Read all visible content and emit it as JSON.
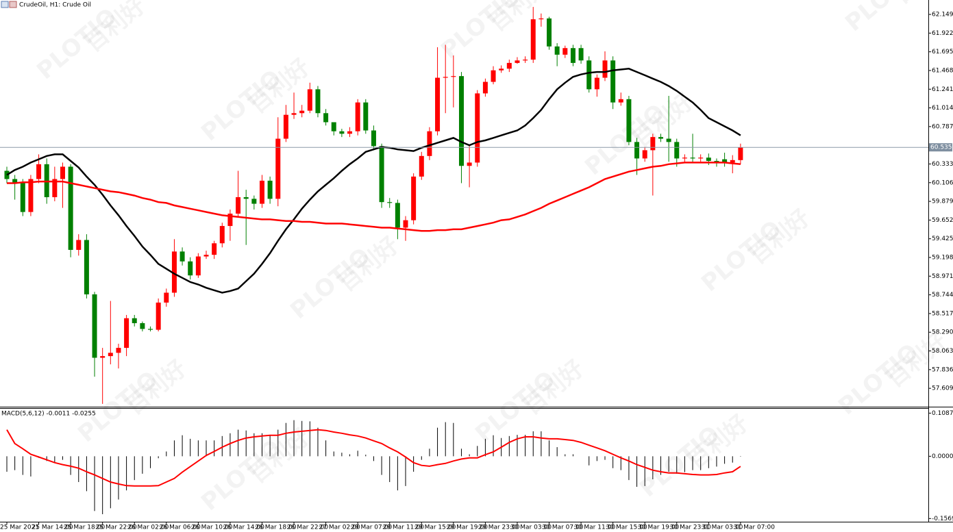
{
  "watermark": [
    "PLOTIO",
    "百利好"
  ],
  "chart_data": [
    {
      "type": "candlestick",
      "title": "CrudeOil, H1:  Crude Oil",
      "up_color": "#ff0000",
      "down_color": "#008000",
      "categories": [
        "25 Mar 2021",
        null,
        null,
        null,
        "25 Mar 14:00",
        null,
        null,
        null,
        "25 Mar 18:00",
        null,
        null,
        null,
        "25 Mar 22:00",
        null,
        null,
        null,
        "26 Mar 02:00",
        null,
        null,
        null,
        "26 Mar 06:00",
        null,
        null,
        null,
        "26 Mar 10:00",
        null,
        null,
        null,
        "26 Mar 14:00",
        null,
        null,
        null,
        "26 Mar 18:00",
        null,
        null,
        null,
        "26 Mar 22:00",
        null,
        null,
        null,
        "27 Mar 02:00",
        null,
        null,
        null,
        "29 Mar 07:00",
        null,
        null,
        null,
        "29 Mar 11:00",
        null,
        null,
        null,
        "29 Mar 15:00",
        null,
        null,
        null,
        "29 Mar 19:00",
        null,
        null,
        null,
        "29 Mar 23:00",
        null,
        null,
        null,
        "30 Mar 03:00",
        null,
        null,
        null,
        "30 Mar 07:00",
        null,
        null,
        null,
        "30 Mar 11:00",
        null,
        null,
        null,
        "30 Mar 15:00",
        null,
        null,
        null,
        "30 Mar 19:00",
        null,
        null,
        null,
        "30 Mar 23:00",
        null,
        null,
        null,
        "31 Mar 03:00",
        null,
        null,
        null,
        "31 Mar 07:00"
      ],
      "open": [
        60.25,
        60.15,
        60.1,
        59.75,
        60.15,
        60.33,
        59.93,
        60.15,
        60.3,
        59.29,
        59.41,
        58.75,
        57.98,
        58.0,
        58.04,
        58.1,
        58.46,
        58.4,
        58.33,
        58.32,
        58.65,
        58.77,
        59.27,
        59.15,
        58.98,
        59.21,
        59.23,
        59.37,
        59.58,
        59.73,
        59.93,
        59.91,
        59.85,
        60.13,
        59.91,
        60.64,
        60.93,
        60.95,
        60.98,
        61.24,
        60.95,
        60.84,
        60.73,
        60.7,
        60.73,
        61.08,
        60.74,
        60.55,
        59.87,
        59.86,
        59.56,
        59.65,
        60.18,
        60.43,
        60.73,
        61.38,
        61.39,
        61.4,
        60.31,
        60.35,
        61.19,
        61.33,
        61.47,
        61.49,
        61.56,
        61.59,
        61.6,
        62.09,
        62.1,
        61.76,
        61.66,
        61.74,
        61.74,
        61.59,
        61.24,
        61.38,
        61.59,
        61.08,
        61.12,
        60.6,
        60.4,
        60.5,
        60.66,
        60.64,
        60.6,
        60.4,
        60.41,
        60.4,
        60.41,
        60.37,
        60.39,
        60.35,
        60.38
      ],
      "high": [
        60.3,
        60.2,
        60.15,
        60.2,
        60.45,
        60.4,
        60.3,
        60.35,
        60.33,
        59.48,
        59.48,
        58.78,
        58.1,
        58.67,
        58.15,
        58.5,
        58.5,
        58.42,
        58.36,
        58.7,
        58.82,
        59.42,
        59.32,
        59.2,
        59.25,
        59.28,
        59.4,
        59.62,
        59.78,
        60.25,
        60.02,
        59.95,
        60.2,
        60.18,
        60.9,
        61.05,
        61.2,
        61.05,
        61.32,
        61.28,
        61.0,
        60.8,
        60.76,
        60.78,
        61.12,
        61.12,
        60.8,
        60.58,
        59.92,
        59.9,
        59.7,
        60.22,
        60.48,
        60.78,
        61.75,
        61.78,
        61.65,
        61.45,
        60.55,
        61.23,
        61.37,
        61.52,
        61.53,
        61.6,
        61.63,
        61.64,
        62.24,
        62.16,
        62.12,
        61.8,
        61.77,
        61.78,
        61.78,
        61.64,
        61.42,
        61.7,
        61.64,
        61.2,
        61.16,
        60.65,
        60.54,
        60.7,
        60.7,
        61.16,
        60.64,
        60.45,
        60.7,
        60.45,
        60.46,
        60.4,
        60.47,
        60.44,
        60.58
      ],
      "low": [
        60.1,
        59.9,
        59.7,
        59.7,
        60.1,
        59.85,
        59.88,
        59.8,
        59.2,
        59.22,
        58.7,
        57.75,
        57.42,
        57.9,
        57.85,
        58.0,
        58.36,
        58.3,
        58.3,
        58.3,
        58.6,
        58.72,
        59.1,
        58.93,
        58.95,
        59.18,
        59.18,
        59.32,
        59.4,
        59.68,
        59.35,
        59.78,
        59.8,
        59.85,
        59.82,
        60.6,
        60.88,
        60.9,
        60.95,
        60.9,
        60.8,
        60.68,
        60.66,
        60.66,
        60.68,
        60.7,
        60.5,
        59.8,
        59.8,
        59.42,
        59.4,
        59.6,
        60.14,
        60.38,
        60.68,
        60.95,
        61.02,
        60.1,
        60.05,
        60.3,
        61.15,
        61.3,
        61.44,
        61.45,
        61.55,
        61.56,
        61.56,
        62.0,
        61.72,
        61.52,
        61.62,
        61.52,
        61.55,
        61.2,
        61.15,
        61.34,
        61.0,
        61.04,
        60.56,
        60.2,
        60.36,
        59.95,
        60.6,
        60.36,
        60.3,
        60.36,
        60.36,
        60.36,
        60.32,
        60.3,
        60.3,
        60.22,
        60.33
      ],
      "close": [
        60.15,
        60.1,
        59.75,
        60.15,
        60.33,
        59.93,
        60.15,
        60.3,
        59.29,
        59.41,
        58.75,
        57.98,
        58.0,
        58.04,
        58.1,
        58.46,
        58.4,
        58.33,
        58.32,
        58.65,
        58.77,
        59.27,
        59.15,
        58.98,
        59.21,
        59.23,
        59.37,
        59.58,
        59.73,
        59.93,
        59.91,
        59.85,
        60.13,
        59.91,
        60.64,
        60.93,
        60.95,
        60.98,
        61.24,
        60.95,
        60.84,
        60.73,
        60.7,
        60.73,
        61.08,
        60.74,
        60.55,
        59.87,
        59.86,
        59.56,
        59.65,
        60.18,
        60.43,
        60.73,
        61.38,
        61.39,
        61.4,
        60.31,
        60.35,
        61.19,
        61.33,
        61.47,
        61.49,
        61.56,
        61.59,
        61.6,
        62.09,
        62.1,
        61.76,
        61.66,
        61.74,
        61.56,
        61.59,
        61.24,
        61.38,
        61.59,
        61.08,
        61.12,
        60.6,
        60.4,
        60.5,
        60.66,
        60.64,
        60.6,
        60.4,
        60.41,
        60.4,
        60.41,
        60.37,
        60.35,
        60.35,
        60.38,
        60.535
      ],
      "series": [
        {
          "color": "#000000",
          "values": [
            60.2,
            60.26,
            60.3,
            60.35,
            60.39,
            60.43,
            60.45,
            60.45,
            60.37,
            60.29,
            60.18,
            60.08,
            59.96,
            59.83,
            59.71,
            59.58,
            59.46,
            59.33,
            59.23,
            59.12,
            59.06,
            59.0,
            58.95,
            58.9,
            58.87,
            58.83,
            58.8,
            58.77,
            58.79,
            58.82,
            58.91,
            59.0,
            59.12,
            59.25,
            59.4,
            59.54,
            59.66,
            59.79,
            59.9,
            60.0,
            60.08,
            60.16,
            60.25,
            60.33,
            60.4,
            60.48,
            60.51,
            60.54,
            60.53,
            60.51,
            60.5,
            60.49,
            60.53,
            60.56,
            60.59,
            60.62,
            60.65,
            60.6,
            60.56,
            60.6,
            60.62,
            60.65,
            60.68,
            60.71,
            60.74,
            60.8,
            60.89,
            60.99,
            61.12,
            61.24,
            61.32,
            61.39,
            61.42,
            61.44,
            61.45,
            61.45,
            61.47,
            61.48,
            61.49,
            61.45,
            61.41,
            61.37,
            61.33,
            61.28,
            61.22,
            61.15,
            61.08,
            60.99,
            60.89,
            60.84,
            60.79,
            60.74,
            60.68
          ]
        },
        {
          "color": "#ff0000",
          "values": [
            60.1,
            60.1,
            60.11,
            60.11,
            60.12,
            60.12,
            60.12,
            60.12,
            60.1,
            60.08,
            60.06,
            60.04,
            60.02,
            60.0,
            59.99,
            59.97,
            59.95,
            59.92,
            59.9,
            59.87,
            59.86,
            59.83,
            59.81,
            59.79,
            59.77,
            59.75,
            59.73,
            59.71,
            59.7,
            59.69,
            59.68,
            59.67,
            59.66,
            59.66,
            59.65,
            59.64,
            59.64,
            59.63,
            59.63,
            59.62,
            59.61,
            59.61,
            59.61,
            59.6,
            59.59,
            59.58,
            59.57,
            59.56,
            59.56,
            59.55,
            59.54,
            59.53,
            59.52,
            59.52,
            59.53,
            59.53,
            59.54,
            59.54,
            59.56,
            59.58,
            59.6,
            59.62,
            59.65,
            59.66,
            59.69,
            59.72,
            59.76,
            59.8,
            59.85,
            59.89,
            59.93,
            59.97,
            60.01,
            60.05,
            60.1,
            60.15,
            60.18,
            60.21,
            60.24,
            60.26,
            60.28,
            60.3,
            60.31,
            60.33,
            60.34,
            60.35,
            60.35,
            60.35,
            60.35,
            60.35,
            60.35,
            60.34,
            60.33
          ]
        }
      ],
      "price_line": {
        "value": 60.535,
        "label": "60.535"
      },
      "ylim": [
        57.394,
        62.324
      ],
      "yticks": [
        62.149,
        61.922,
        61.695,
        61.468,
        61.241,
        61.014,
        60.787,
        60.333,
        60.106,
        59.879,
        59.652,
        59.425,
        59.198,
        58.971,
        58.744,
        58.517,
        {
          "value": 58.29,
          "label": "58.290"
        },
        58.063,
        57.836,
        57.609
      ]
    },
    {
      "type": "macd",
      "label": "MACD(5,6,12) -0.0011 -0.0255",
      "histogram": {
        "color": "#000000",
        "values": [
          -0.039,
          -0.035,
          -0.047,
          -0.051,
          -0.004,
          -0.012,
          -0.016,
          -0.009,
          -0.047,
          -0.065,
          -0.088,
          -0.138,
          -0.146,
          -0.131,
          -0.109,
          -0.086,
          -0.06,
          -0.044,
          -0.03,
          -0.005,
          0.012,
          0.04,
          0.053,
          0.044,
          0.04,
          0.04,
          0.04,
          0.051,
          0.058,
          0.067,
          0.065,
          0.058,
          0.058,
          0.054,
          0.067,
          0.084,
          0.091,
          0.089,
          0.088,
          0.072,
          0.04,
          0.012,
          0.009,
          0.005,
          0.014,
          0.004,
          -0.012,
          -0.047,
          -0.065,
          -0.086,
          -0.075,
          -0.039,
          -0.009,
          0.019,
          0.072,
          0.086,
          0.084,
          0.019,
          0.005,
          0.026,
          0.044,
          0.053,
          0.046,
          0.051,
          0.054,
          0.054,
          0.063,
          0.063,
          0.04,
          0.023,
          0.005,
          0.005,
          0,
          -0.023,
          -0.012,
          -0.009,
          -0.03,
          -0.035,
          -0.06,
          -0.077,
          -0.075,
          -0.058,
          -0.047,
          -0.039,
          -0.044,
          -0.04,
          -0.035,
          -0.035,
          -0.03,
          -0.026,
          -0.019,
          -0.016,
          -0.0011
        ]
      },
      "signal": {
        "color": "#ff0000",
        "values": [
          0.067,
          0.032,
          0.019,
          0.005,
          -0.002,
          -0.009,
          -0.016,
          -0.021,
          -0.025,
          -0.03,
          -0.039,
          -0.047,
          -0.056,
          -0.065,
          -0.07,
          -0.074,
          -0.075,
          -0.075,
          -0.075,
          -0.074,
          -0.065,
          -0.056,
          -0.04,
          -0.026,
          -0.012,
          0.002,
          0.012,
          0.023,
          0.032,
          0.04,
          0.046,
          0.049,
          0.051,
          0.053,
          0.053,
          0.058,
          0.061,
          0.063,
          0.065,
          0.067,
          0.065,
          0.061,
          0.058,
          0.054,
          0.051,
          0.046,
          0.039,
          0.032,
          0.021,
          0.011,
          -0.002,
          -0.016,
          -0.023,
          -0.025,
          -0.021,
          -0.018,
          -0.012,
          -0.007,
          -0.004,
          -0.004,
          0.004,
          0.011,
          0.023,
          0.035,
          0.044,
          0.049,
          0.049,
          0.046,
          0.044,
          0.044,
          0.042,
          0.04,
          0.035,
          0.028,
          0.021,
          0.014,
          0.005,
          -0.004,
          -0.012,
          -0.021,
          -0.028,
          -0.035,
          -0.039,
          -0.042,
          -0.042,
          -0.044,
          -0.046,
          -0.047,
          -0.047,
          -0.046,
          -0.042,
          -0.039,
          -0.0255
        ]
      },
      "ylim": [
        -0.165,
        0.118
      ],
      "yticks": [
        0.1087,
        {
          "value": 0,
          "label": "0.0000"
        },
        -0.1569
      ]
    }
  ]
}
